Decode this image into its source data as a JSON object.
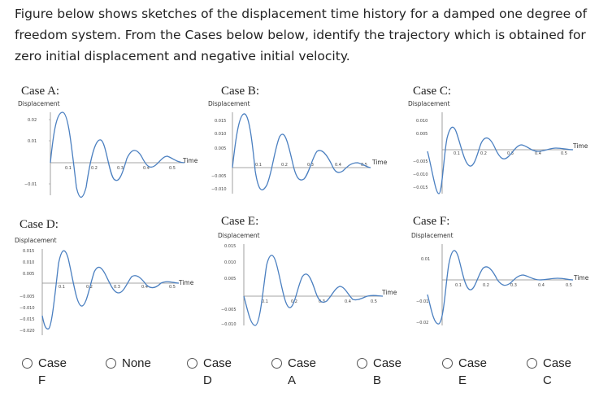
{
  "question": "Figure below shows sketches of the displacement time history for a damped one degree of freedom system.  From the Cases below below, identify the trajectory which is obtained for zero initial displacement and negative initial velocity.",
  "cases": [
    {
      "id": "A",
      "title": "Case A:",
      "ylabel": "Displacement",
      "xlabel": "Time",
      "yticks": [
        "0.02",
        "0.01",
        "−0.01"
      ],
      "xticks": [
        "0.1",
        "0.2",
        "0.3",
        "0.4",
        "0.5"
      ]
    },
    {
      "id": "B",
      "title": "Case B:",
      "ylabel": "Displacement",
      "xlabel": "Time",
      "yticks": [
        "0.015",
        "0.010",
        "0.005",
        "−0.005",
        "−0.010"
      ],
      "xticks": [
        "0.1",
        "0.2",
        "0.3",
        "0.4",
        "0.5"
      ]
    },
    {
      "id": "C",
      "title": "Case C:",
      "ylabel": "Displacement",
      "xlabel": "Time",
      "yticks": [
        "0.010",
        "0.005",
        "−0.005",
        "−0.010",
        "−0.015"
      ],
      "xticks": [
        "0.1",
        "0.2",
        "0.3",
        "0.4",
        "0.5"
      ]
    },
    {
      "id": "D",
      "title": "Case D:",
      "ylabel": "Displacement",
      "xlabel": "Time",
      "yticks": [
        "0.015",
        "0.010",
        "0.005",
        "−0.005",
        "−0.010",
        "−0.015",
        "−0.020"
      ],
      "xticks": [
        "0.1",
        "0.2",
        "0.3",
        "0.4",
        "0.5"
      ]
    },
    {
      "id": "E",
      "title": "Case E:",
      "ylabel": "Displacement",
      "xlabel": "Time",
      "yticks": [
        "0.015",
        "0.010",
        "0.005",
        "−0.005",
        "−0.010"
      ],
      "xticks": [
        "0.1",
        "0.2",
        "0.3",
        "0.4",
        "0.5"
      ]
    },
    {
      "id": "F",
      "title": "Case F:",
      "ylabel": "Displacement",
      "xlabel": "Time",
      "yticks": [
        "0.01",
        "−0.01",
        "−0.02"
      ],
      "xticks": [
        "0.1",
        "0.2",
        "0.3",
        "0.4",
        "0.5"
      ]
    }
  ],
  "curve_color": "#4a7fc0",
  "options": [
    {
      "label": "Case F"
    },
    {
      "label": "None"
    },
    {
      "label": "Case D"
    },
    {
      "label": "Case A"
    },
    {
      "label": "Case B"
    },
    {
      "label": "Case E"
    },
    {
      "label": "Case C"
    }
  ]
}
